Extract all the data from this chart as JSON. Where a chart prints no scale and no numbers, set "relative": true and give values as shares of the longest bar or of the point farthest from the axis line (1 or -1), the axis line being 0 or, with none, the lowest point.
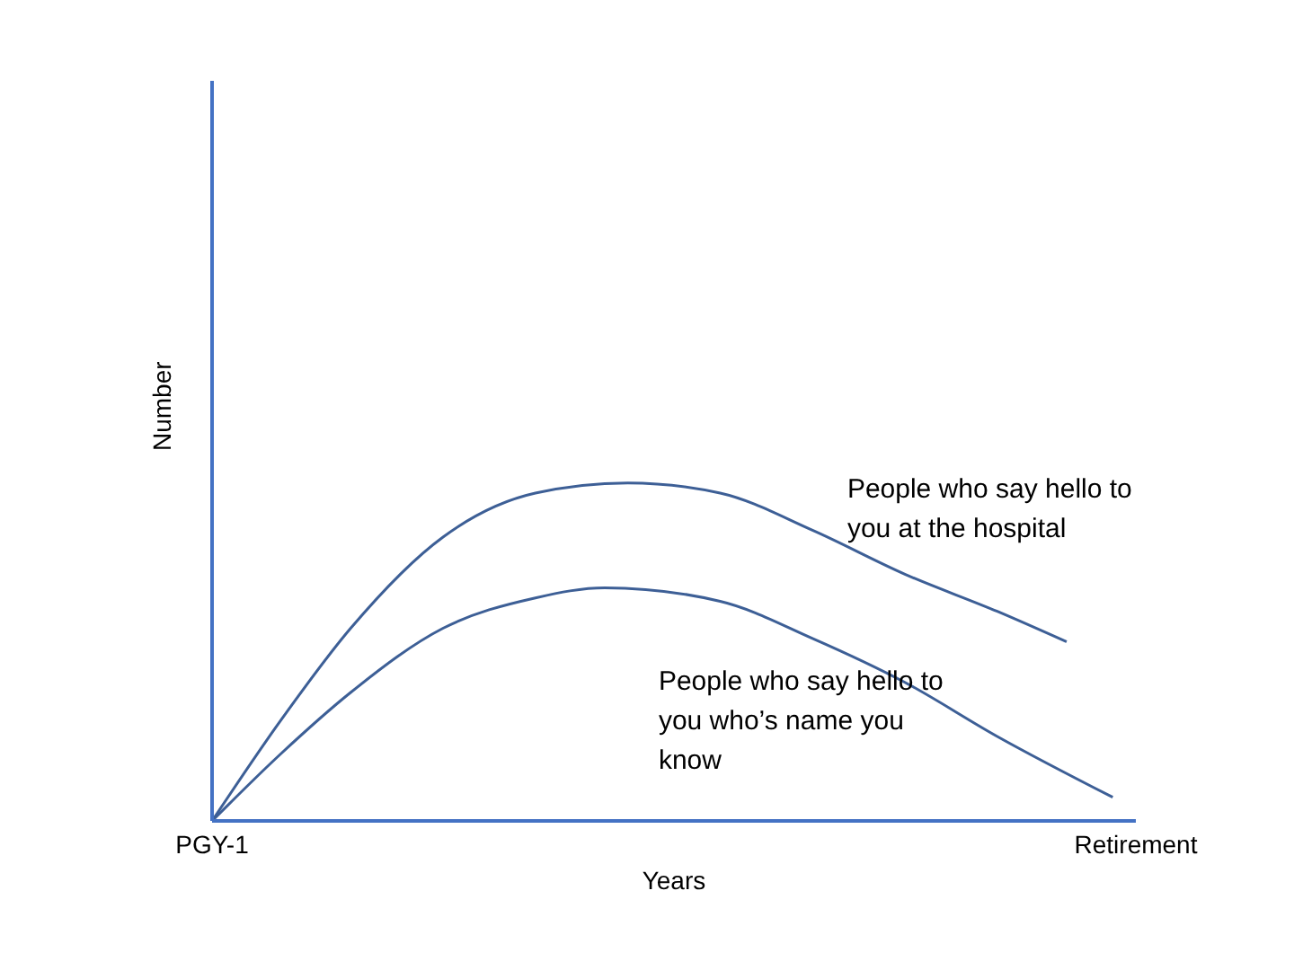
{
  "chart_data": {
    "type": "line",
    "relative": true,
    "xlabel": "Years",
    "ylabel": "Number",
    "categories": [
      "PGY-1",
      null,
      null,
      null,
      null,
      null,
      null,
      null,
      null,
      null,
      null,
      null,
      null,
      null,
      null,
      null,
      null,
      null,
      null,
      null,
      null,
      null,
      null,
      null,
      null,
      null,
      null,
      null,
      null,
      null,
      null,
      null,
      null,
      null,
      null,
      null,
      null,
      null,
      null,
      null,
      "Retirement"
    ],
    "series": [
      {
        "name": "People who say hello to you at the hospital",
        "color": "#3d5f96",
        "values": [
          0,
          null,
          null,
          0.3,
          null,
          null,
          0.57,
          null,
          null,
          null,
          0.84,
          null,
          null,
          null,
          0.97,
          null,
          null,
          null,
          1,
          null,
          null,
          null,
          0.97,
          null,
          null,
          null,
          0.86,
          null,
          null,
          null,
          0.73,
          null,
          null,
          null,
          0.62,
          null,
          null,
          0.53,
          null,
          null,
          null
        ]
      },
      {
        "name": "People who say hello to you who’s name you know",
        "color": "#3d5f96",
        "values": [
          0,
          null,
          null,
          0.2,
          null,
          null,
          0.38,
          null,
          null,
          null,
          0.57,
          null,
          null,
          null,
          0.66,
          null,
          null,
          0.69,
          null,
          null,
          null,
          null,
          0.65,
          null,
          null,
          null,
          0.54,
          null,
          null,
          null,
          0.41,
          null,
          null,
          null,
          0.25,
          null,
          null,
          null,
          null,
          0.07,
          null
        ]
      }
    ],
    "legend": false,
    "grid": false,
    "marker": "none",
    "line_style": "solid"
  }
}
